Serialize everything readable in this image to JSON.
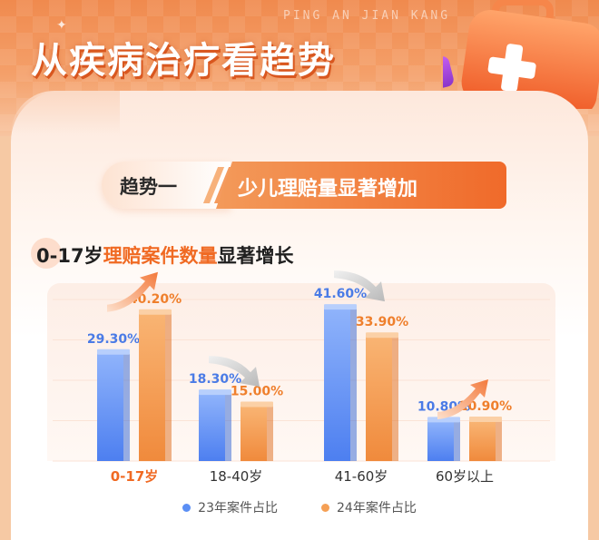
{
  "header": {
    "title": "从疾病治疗看趋势",
    "watermark": "PING AN JIAN KANG"
  },
  "banner": {
    "left_label": "趋势一",
    "right_label": "少儿理赔量显著增加"
  },
  "subtitle": {
    "prefix": "0-17岁",
    "highlight": "理赔案件数量",
    "suffix": "显著增长"
  },
  "colors": {
    "series_2023": "#5b8ff5",
    "series_2024": "#f5a055",
    "highlight": "#f06a23",
    "label_2023": "#4a7be6",
    "label_2024": "#ef7f2c"
  },
  "chart_data": {
    "type": "bar",
    "categories": [
      "0-17岁",
      "18-40岁",
      "41-60岁",
      "60岁以上"
    ],
    "highlighted_category": "0-17岁",
    "series": [
      {
        "name": "23年案件占比",
        "values": [
          29.3,
          18.3,
          41.6,
          10.8
        ],
        "labels": [
          "29.30%",
          "18.30%",
          "41.60%",
          "10.80%"
        ]
      },
      {
        "name": "24年案件占比",
        "values": [
          40.2,
          15.0,
          33.9,
          10.9
        ],
        "labels": [
          "40.20%",
          "15.00%",
          "33.90%",
          "10.90%"
        ]
      }
    ],
    "trend_arrows": [
      "up",
      "down",
      "down",
      "up"
    ],
    "ylim": [
      0,
      45
    ],
    "legend_position": "bottom-center",
    "grid": true
  }
}
